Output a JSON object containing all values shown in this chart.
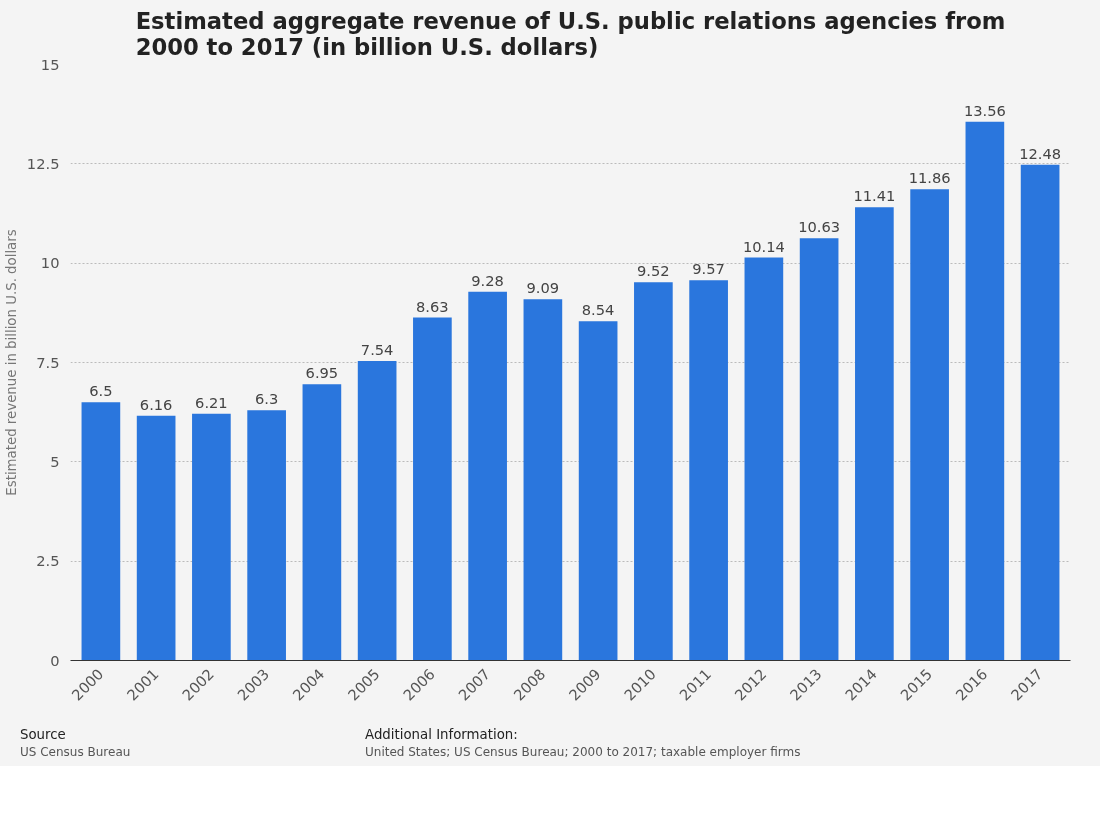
{
  "chart_data": {
    "type": "bar",
    "title": "Estimated aggregate revenue of U.S. public relations agencies from\n2000 to 2017 (in billion U.S. dollars)",
    "ylabel": "Estimated revenue in billion U.S. dollars",
    "categories": [
      "2000",
      "2001",
      "2002",
      "2003",
      "2004",
      "2005",
      "2006",
      "2007",
      "2008",
      "2009",
      "2010",
      "2011",
      "2012",
      "2013",
      "2014",
      "2015",
      "2016",
      "2017"
    ],
    "values": [
      6.5,
      6.16,
      6.21,
      6.3,
      6.95,
      7.54,
      8.63,
      9.28,
      9.09,
      8.54,
      9.52,
      9.57,
      10.14,
      10.63,
      11.41,
      11.86,
      13.56,
      12.48
    ],
    "color": "#2a76dd",
    "ylim": [
      0,
      15
    ],
    "yticks": [
      0,
      2.5,
      5,
      7.5,
      10,
      12.5,
      15
    ],
    "grid": "y",
    "data_labels": true,
    "annotations": [
      "Source",
      "US Census Bureau",
      "Additional Information:",
      "United States; US Census Bureau; 2000 to 2017; taxable employer firms"
    ]
  }
}
